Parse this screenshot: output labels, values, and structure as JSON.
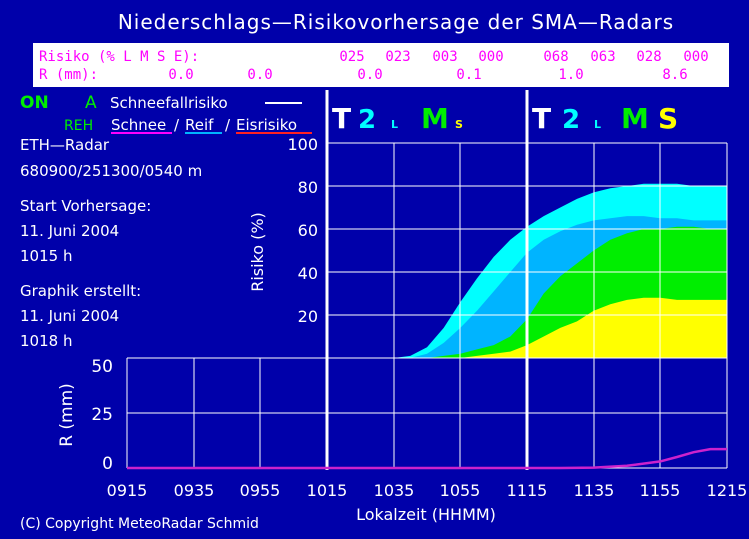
{
  "title": "Niederschlags—Risikovorhersage der SMA—Radars",
  "table": {
    "risk_label": "Risiko (% L M S E):",
    "rain_label": "R (mm):",
    "risk_values": [
      "025",
      "023",
      "003",
      "000",
      "068",
      "063",
      "028",
      "000"
    ],
    "rain_values": [
      "0.0",
      "0.0",
      "0.0",
      "0.1",
      "1.0",
      "8.6"
    ]
  },
  "legend": {
    "on": "ON",
    "a": "A",
    "snow_risk": "Schneefallrisiko",
    "reh": "REH",
    "schnee": "Schnee",
    "slash1": "/",
    "reif": "Reif",
    "slash2": "/",
    "eisrisiko": "Eisrisiko"
  },
  "info": {
    "radar": "ETH—Radar",
    "coords": "680900/251300/0540 m",
    "start_label": "Start Vorhersage:",
    "start_date": "11. Juni 2004",
    "start_time": "1015 h",
    "created_label": "Graphik erstellt:",
    "created_date": "11. Juni 2004",
    "created_time": "1018 h"
  },
  "classes": [
    {
      "t": "T",
      "n": "2",
      "l": "L",
      "m": "M",
      "s": "S"
    },
    {
      "t": "T",
      "n": "2",
      "l": "L",
      "m": "M",
      "s": "S"
    }
  ],
  "copyright": "(C) Copyright MeteoRadar Schmid",
  "colors": {
    "background": "#0000aa",
    "cyan": "#00ffff",
    "mid_blue": "#00b4ff",
    "green": "#00ee00",
    "yellow": "#ffff00",
    "magenta": "#ff00ff",
    "rain_line": "#cc22cc",
    "white": "#ffffff"
  },
  "chart_data": [
    {
      "type": "area",
      "ylabel": "Risiko (%)",
      "ylim": [
        0,
        100
      ],
      "yticks": [
        "100",
        "80",
        "60",
        "40",
        "20"
      ],
      "x": [
        "1015",
        "1020",
        "1025",
        "1030",
        "1035",
        "1040",
        "1045",
        "1050",
        "1055",
        "1100",
        "1105",
        "1110",
        "1115",
        "1120",
        "1125",
        "1130",
        "1135",
        "1140",
        "1145",
        "1150",
        "1155",
        "1200",
        "1205",
        "1210",
        "1215"
      ],
      "series": [
        {
          "values": [
            0,
            0,
            0,
            0,
            0,
            1,
            5,
            14,
            26,
            37,
            47,
            55,
            61,
            66,
            70,
            74,
            77,
            79,
            80,
            81,
            81,
            81,
            80,
            80,
            80
          ]
        },
        {
          "values": [
            0,
            0,
            0,
            0,
            0,
            0,
            2,
            7,
            14,
            22,
            31,
            40,
            49,
            55,
            59,
            62,
            64,
            65,
            66,
            66,
            65,
            65,
            64,
            64,
            64
          ]
        },
        {
          "values": [
            0,
            0,
            0,
            0,
            0,
            0,
            0,
            1,
            2,
            4,
            6,
            10,
            18,
            30,
            38,
            44,
            50,
            55,
            58,
            60,
            60,
            61,
            61,
            60,
            60
          ]
        },
        {
          "values": [
            0,
            0,
            0,
            0,
            0,
            0,
            0,
            0,
            0,
            1,
            2,
            3,
            6,
            10,
            14,
            17,
            22,
            25,
            27,
            28,
            28,
            27,
            27,
            27,
            27
          ]
        }
      ]
    },
    {
      "type": "line",
      "xlabel": "Lokalzeit (HHMM)",
      "ylabel": "R (mm)",
      "ylim": [
        0,
        50
      ],
      "yticks": [
        "50",
        "25",
        "0"
      ],
      "xticks": [
        "0915",
        "0935",
        "0955",
        "1015",
        "1035",
        "1055",
        "1115",
        "1135",
        "1155",
        "1215"
      ],
      "x": [
        "0915",
        "1015",
        "1125",
        "1135",
        "1145",
        "1155",
        "1200",
        "1205",
        "1210",
        "1215"
      ],
      "series": [
        {
          "values": [
            0,
            0,
            0,
            0.2,
            1.0,
            3.0,
            5.0,
            7.2,
            8.6,
            8.6
          ]
        }
      ]
    }
  ]
}
